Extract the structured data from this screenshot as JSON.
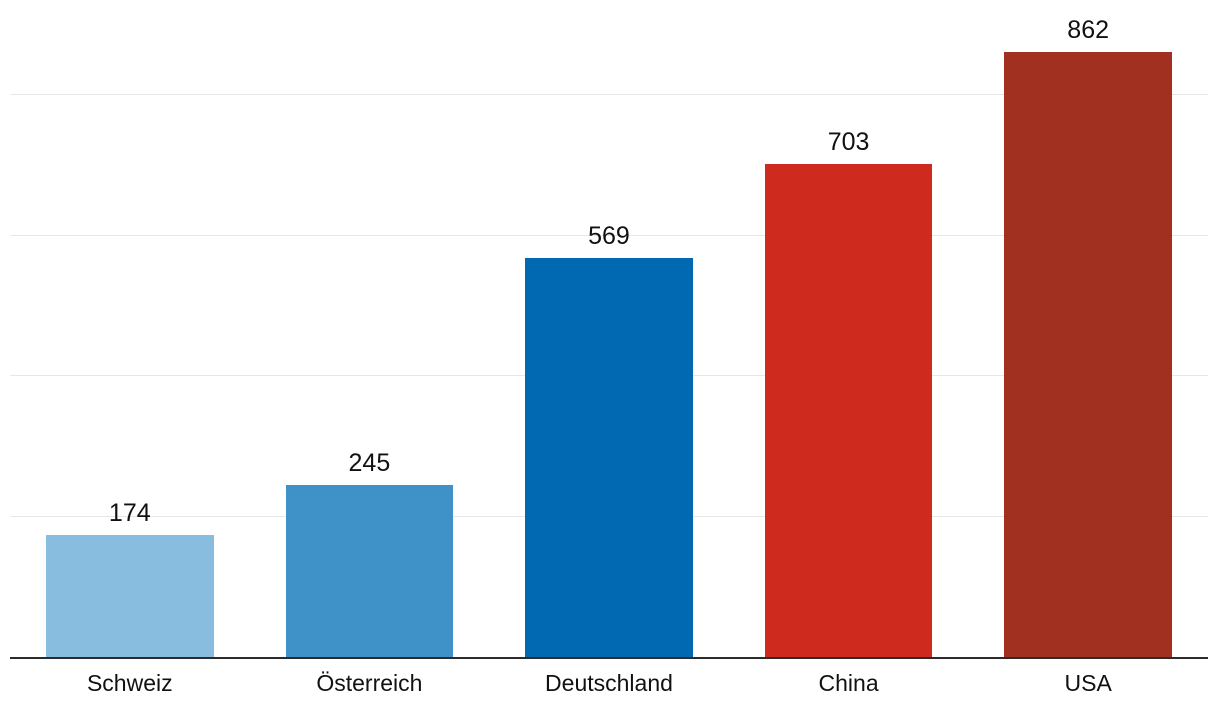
{
  "chart_data": {
    "type": "bar",
    "title": "",
    "xlabel": "",
    "ylabel": "",
    "categories": [
      "Schweiz",
      "Österreich",
      "Deutschland",
      "China",
      "USA"
    ],
    "values": [
      174,
      245,
      569,
      703,
      862
    ],
    "bar_colors": [
      "#89bddf",
      "#3e92c8",
      "#0069b1",
      "#cf2a1e",
      "#a23020"
    ],
    "ylim": [
      0,
      936
    ],
    "gridlines": [
      200,
      400,
      600,
      800
    ],
    "grid_on": true,
    "grid_color": "#e7e7e7",
    "axis_color": "#2b2b2b",
    "background": "#ffffff",
    "legend": "none",
    "value_labels_shown": true
  }
}
